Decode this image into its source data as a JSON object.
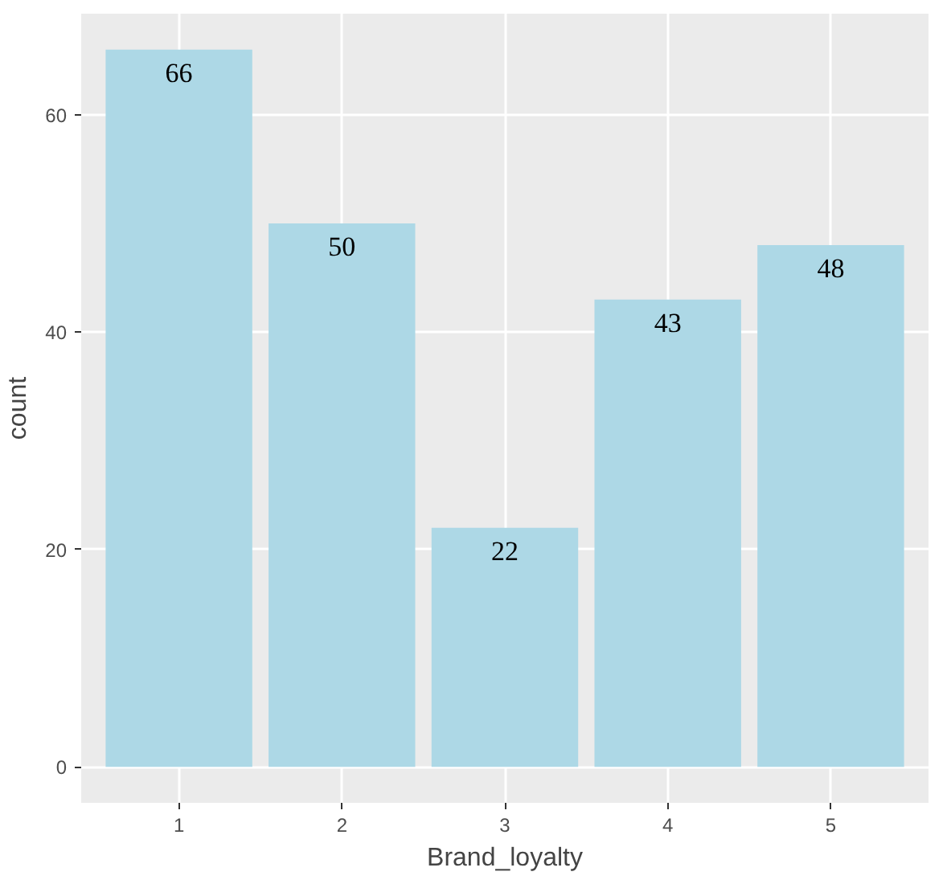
{
  "chart_data": {
    "type": "bar",
    "xlabel": "Brand_loyalty",
    "ylabel": "count",
    "categories": [
      "1",
      "2",
      "3",
      "4",
      "5"
    ],
    "values": [
      66,
      50,
      22,
      43,
      48
    ],
    "color": "#add8e6",
    "ylim": [
      -3.3,
      69.3
    ],
    "yticks": [
      0,
      20,
      40,
      60
    ],
    "grid": true,
    "data_labels": true
  }
}
